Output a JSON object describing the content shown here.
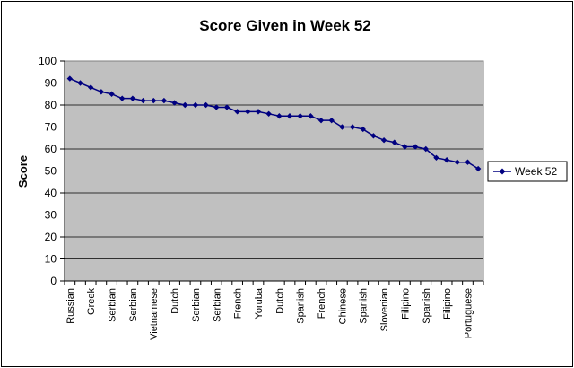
{
  "chart_data": {
    "type": "line",
    "title": "Score Given in Week 52",
    "xlabel": "",
    "ylabel": "Score",
    "ylim": [
      0,
      100
    ],
    "yticks": [
      0,
      10,
      20,
      30,
      40,
      50,
      60,
      70,
      80,
      90,
      100
    ],
    "grid": "horizontal",
    "legend_position": "right",
    "colors": {
      "series": "#000080",
      "plot_bg": "#c0c0c0",
      "grid": "#000000"
    },
    "categories": [
      "Russian",
      "",
      "Greek",
      "",
      "Serbian",
      "",
      "Serbian",
      "",
      "Vietnamese",
      "",
      "Dutch",
      "",
      "Serbian",
      "",
      "Serbian",
      "",
      "French",
      "",
      "Yoruba",
      "",
      "Dutch",
      "",
      "Spanish",
      "",
      "French",
      "",
      "Chinese",
      "",
      "Spanish",
      "",
      "Slovenian",
      "",
      "Filipino",
      "",
      "Spanish",
      "",
      "Filipino",
      "",
      "Portuguese",
      ""
    ],
    "series": [
      {
        "name": "Week 52",
        "values": [
          92,
          90,
          88,
          86,
          85,
          83,
          83,
          82,
          82,
          82,
          81,
          80,
          80,
          80,
          79,
          79,
          77,
          77,
          77,
          76,
          75,
          75,
          75,
          75,
          73,
          73,
          70,
          70,
          69,
          66,
          64,
          63,
          61,
          61,
          60,
          56,
          55,
          54,
          54,
          51
        ]
      }
    ]
  }
}
